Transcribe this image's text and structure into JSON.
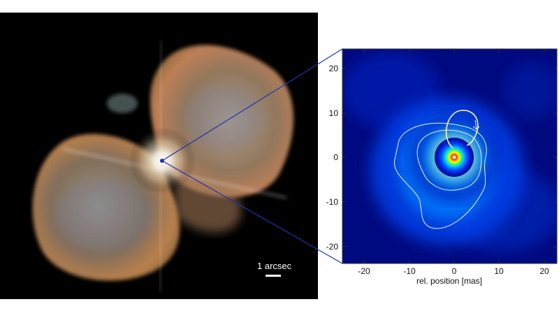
{
  "left_image": {
    "scalebar_label": "1 arcsec"
  },
  "right_image": {
    "xlabel": "rel. position [mas]",
    "x_ticks": [
      "-20",
      "-10",
      "0",
      "10",
      "20"
    ],
    "y_ticks": [
      "20",
      "10",
      "0",
      "-10",
      "-20"
    ],
    "colormap": [
      "#00007a",
      "#0010c0",
      "#0060ff",
      "#00c0ff",
      "#40ff60",
      "#ffff00",
      "#ff6000",
      "#ff0000",
      "#ffffff"
    ]
  }
}
